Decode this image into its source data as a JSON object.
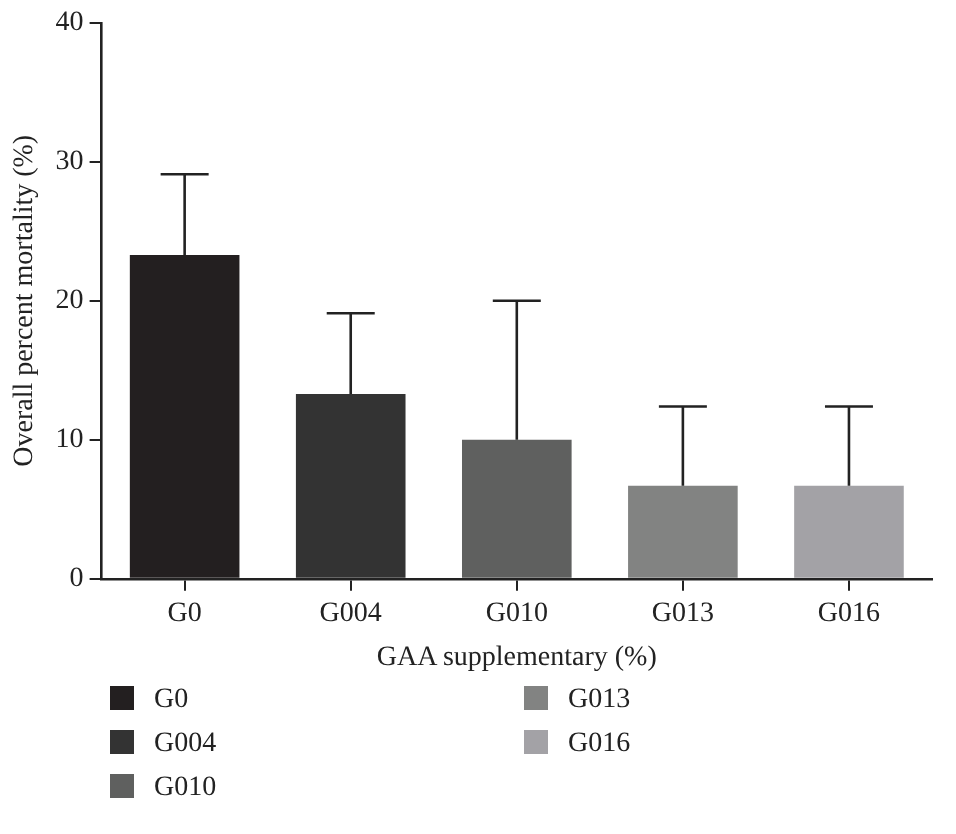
{
  "chart_data": {
    "type": "bar",
    "xlabel": "GAA supplementary (%)",
    "ylabel": "Overall percent mortality (%)",
    "categories": [
      "G0",
      "G004",
      "G010",
      "G013",
      "G016"
    ],
    "series": [
      {
        "name": "G0",
        "color": "#231f20",
        "values": [
          23.3,
          null,
          null,
          null,
          null
        ],
        "errors": [
          [
            23.3,
            29.1
          ],
          null,
          null,
          null,
          null
        ]
      },
      {
        "name": "G004",
        "color": "#333333",
        "values": [
          null,
          13.3,
          null,
          null,
          null
        ],
        "errors": [
          null,
          [
            13.3,
            19.1
          ],
          null,
          null,
          null
        ]
      },
      {
        "name": "G010",
        "color": "#5f605f",
        "values": [
          null,
          null,
          10,
          null,
          null
        ],
        "errors": [
          null,
          null,
          [
            10,
            20
          ],
          null,
          null
        ]
      },
      {
        "name": "G013",
        "color": "#828382",
        "values": [
          null,
          null,
          null,
          6.7,
          null
        ],
        "errors": [
          null,
          null,
          null,
          [
            6.7,
            12.4
          ],
          null
        ]
      },
      {
        "name": "G016",
        "color": "#a3a2a6",
        "values": [
          null,
          null,
          null,
          null,
          6.7
        ],
        "errors": [
          null,
          null,
          null,
          null,
          [
            6.7,
            12.4
          ]
        ]
      }
    ],
    "ylim": [
      0,
      40
    ],
    "yticks": [
      0,
      10,
      20,
      30,
      40
    ],
    "grid": false,
    "legend": "bottom left"
  }
}
